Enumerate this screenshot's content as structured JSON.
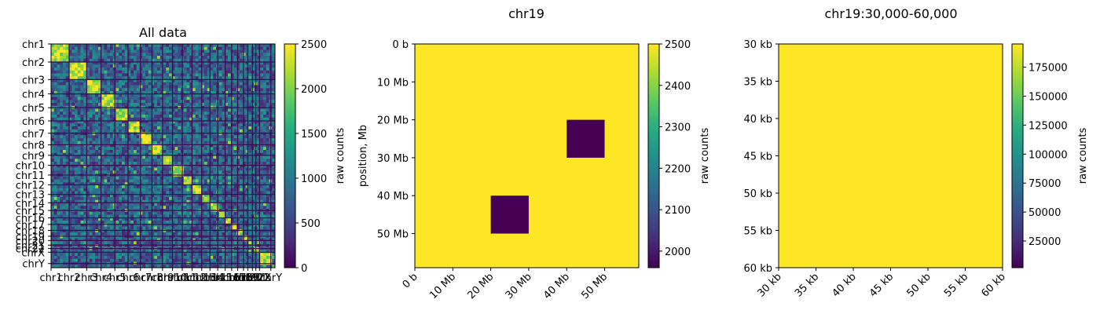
{
  "chart_data": [
    {
      "type": "heatmap",
      "title": "All data",
      "xlabel": "",
      "ylabel": "",
      "x_tick_labels": [
        "chr1",
        "chr2",
        "chr3",
        "chr4",
        "chr5",
        "chr6",
        "chr7",
        "chr8",
        "chr9",
        "chr10",
        "chr11",
        "chr12",
        "chr13",
        "chr14",
        "chr15",
        "chr16",
        "chr17",
        "chr18",
        "chr19",
        "chr20",
        "chr21",
        "chr22",
        "chrX",
        "chrY"
      ],
      "y_tick_labels": [
        "chr1",
        "chr2",
        "chr3",
        "chr4",
        "chr5",
        "chr6",
        "chr7",
        "chr8",
        "chr9",
        "chr10",
        "chr11",
        "chr12",
        "chr13",
        "chr14",
        "chr15",
        "chr16",
        "chr17",
        "chr18",
        "chr19",
        "chr20",
        "chr21",
        "chr22",
        "chrX",
        "chrY"
      ],
      "chromosome_lengths_mb": [
        249,
        242,
        198,
        190,
        182,
        171,
        159,
        145,
        138,
        134,
        135,
        133,
        114,
        107,
        102,
        90,
        83,
        80,
        59,
        64,
        47,
        51,
        156,
        57
      ],
      "colorbar": {
        "label": "raw counts",
        "range": [
          0,
          2500
        ],
        "ticks": [
          "0",
          "500",
          "1000",
          "1500",
          "2000",
          "2500"
        ]
      },
      "colormap": "viridis"
    },
    {
      "type": "heatmap",
      "title": "chr19",
      "xlabel": "",
      "ylabel": "position, Mb",
      "x_range_mb": [
        0,
        59
      ],
      "y_range_mb": [
        0,
        59
      ],
      "x_tick_labels": [
        "0 b",
        "10 Mb",
        "20 Mb",
        "30 Mb",
        "40 Mb",
        "50 Mb"
      ],
      "y_tick_labels": [
        "0 b",
        "10 Mb",
        "20 Mb",
        "30 Mb",
        "40 Mb",
        "50 Mb"
      ],
      "tick_values_mb": [
        0,
        10,
        20,
        30,
        40,
        50
      ],
      "background_value": 2500,
      "low_blocks": [
        {
          "x_mb": [
            20,
            30
          ],
          "y_mb": [
            40,
            50
          ],
          "value": 1960
        },
        {
          "x_mb": [
            40,
            50
          ],
          "y_mb": [
            20,
            30
          ],
          "value": 1960
        }
      ],
      "colorbar": {
        "label": "raw counts",
        "range": [
          1960,
          2500
        ],
        "ticks": [
          "2000",
          "2100",
          "2200",
          "2300",
          "2400",
          "2500"
        ],
        "tick_values": [
          2000,
          2100,
          2200,
          2300,
          2400,
          2500
        ]
      },
      "colormap": "viridis"
    },
    {
      "type": "heatmap",
      "title": "chr19:30,000-60,000",
      "xlabel": "",
      "ylabel": "",
      "x_range_kb": [
        30,
        60
      ],
      "y_range_kb": [
        30,
        60
      ],
      "x_tick_labels": [
        "30 kb",
        "35 kb",
        "40 kb",
        "45 kb",
        "50 kb",
        "55 kb",
        "60 kb"
      ],
      "y_tick_labels": [
        "30 kb",
        "35 kb",
        "40 kb",
        "45 kb",
        "50 kb",
        "55 kb",
        "60 kb"
      ],
      "tick_values_kb": [
        30,
        35,
        40,
        45,
        50,
        55,
        60
      ],
      "fill_value": 195000,
      "colorbar": {
        "label": "raw counts",
        "range": [
          2000,
          195000
        ],
        "ticks": [
          "25000",
          "50000",
          "75000",
          "100000",
          "125000",
          "150000",
          "175000"
        ],
        "tick_values": [
          25000,
          50000,
          75000,
          100000,
          125000,
          150000,
          175000
        ]
      },
      "colormap": "viridis"
    }
  ]
}
